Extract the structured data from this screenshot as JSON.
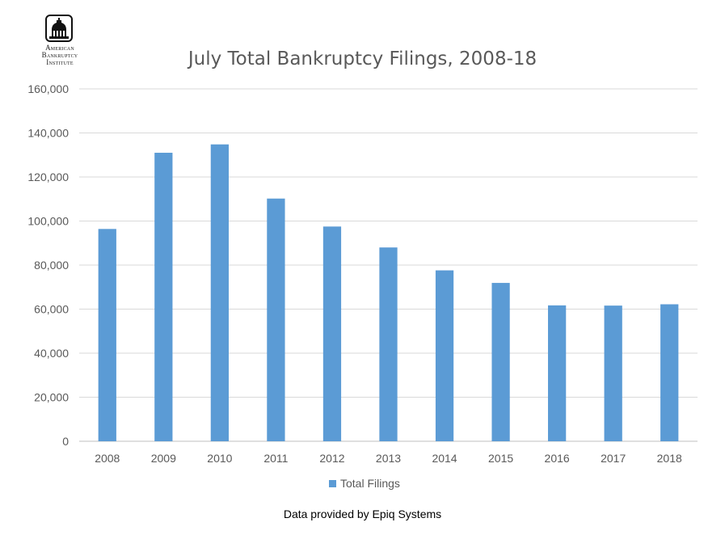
{
  "logo": {
    "line1": "American",
    "line2": "Bankruptcy",
    "line3": "Institute",
    "icon": "capitol-dome-icon"
  },
  "source_note": "Data provided by Epiq Systems",
  "colors": {
    "bar": "#5b9bd5",
    "grid": "#d9d9d9",
    "text": "#595959"
  },
  "chart_data": {
    "type": "bar",
    "title": "July Total Bankruptcy Filings, 2008-18",
    "xlabel": "",
    "ylabel": "",
    "categories": [
      "2008",
      "2009",
      "2010",
      "2011",
      "2012",
      "2013",
      "2014",
      "2015",
      "2016",
      "2017",
      "2018"
    ],
    "series": [
      {
        "name": "Total Filings",
        "values": [
          96400,
          131000,
          134800,
          110200,
          97500,
          88000,
          77600,
          71900,
          61700,
          61600,
          62200
        ]
      }
    ],
    "ylim": [
      0,
      160000
    ],
    "yticks": [
      0,
      20000,
      40000,
      60000,
      80000,
      100000,
      120000,
      140000,
      160000
    ],
    "ytick_labels": [
      "0",
      "20,000",
      "40,000",
      "60,000",
      "80,000",
      "100,000",
      "120,000",
      "140,000",
      "160,000"
    ],
    "grid": true,
    "legend_position": "bottom"
  }
}
